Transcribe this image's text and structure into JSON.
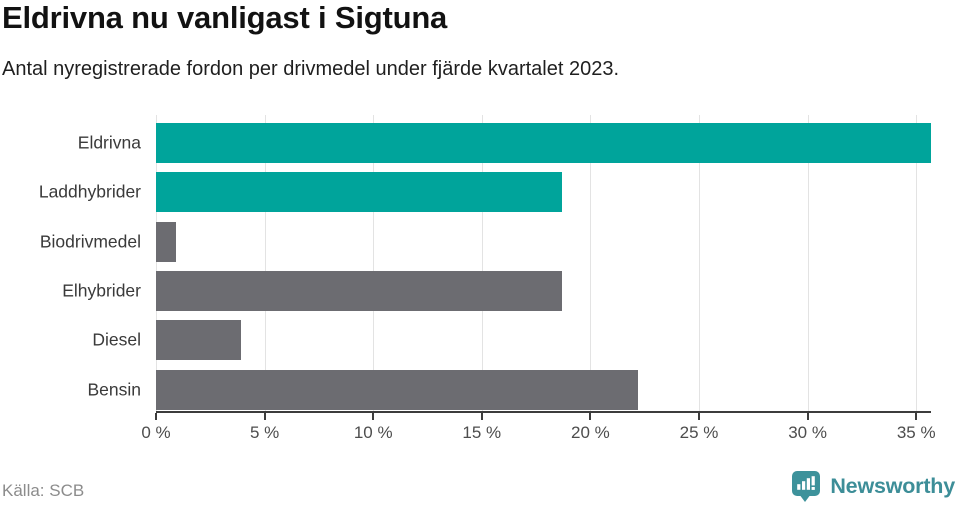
{
  "header": {
    "title": "Eldrivna nu vanligast i Sigtuna",
    "subtitle": "Antal nyregistrerade fordon per drivmedel under fjärde kvartalet 2023."
  },
  "chart_data": {
    "type": "bar",
    "orientation": "horizontal",
    "title": "Eldrivna nu vanligast i Sigtuna",
    "subtitle": "Antal nyregistrerade fordon per drivmedel under fjärde kvartalet 2023.",
    "categories": [
      "Eldrivna",
      "Laddhybrider",
      "Biodrivmedel",
      "Elhybrider",
      "Diesel",
      "Bensin"
    ],
    "values": [
      35.7,
      18.7,
      0.9,
      18.7,
      3.9,
      22.2
    ],
    "unit": "%",
    "bar_colors": [
      "#00a49b",
      "#00a49b",
      "#6c6c71",
      "#6c6c71",
      "#6c6c71",
      "#6c6c71"
    ],
    "highlight_color": "#00a49b",
    "default_color": "#6c6c71",
    "xlim": [
      0,
      35.7
    ],
    "x_ticks": [
      0,
      5,
      10,
      15,
      20,
      25,
      30,
      35
    ],
    "x_tick_labels": [
      "0 %",
      "5 %",
      "10 %",
      "15 %",
      "20 %",
      "25 %",
      "30 %",
      "35 %"
    ],
    "grid": true,
    "legend": "none"
  },
  "footer": {
    "source": "Källa: SCB",
    "brand": "Newsworthy"
  },
  "colors": {
    "teal": "#00a49b",
    "gray": "#6c6c71",
    "grid": "#e3e3e3",
    "axis": "#3c3c3c",
    "brand_teal": "#3d8e98"
  }
}
